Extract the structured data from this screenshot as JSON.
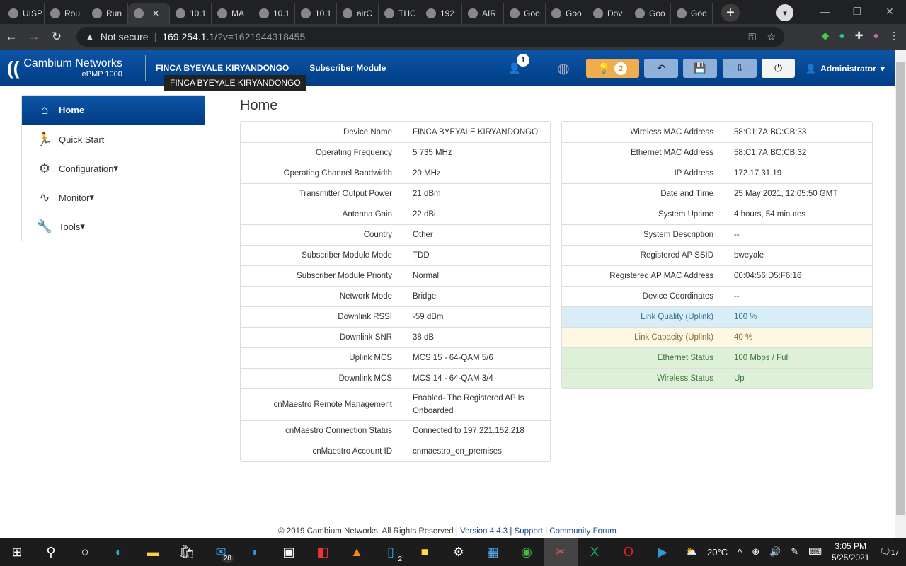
{
  "browser": {
    "tabs": [
      "UISP",
      "Rou",
      "Run",
      "",
      "10.1",
      "MA",
      "10.1",
      "10.1",
      "airC",
      "THC",
      "192",
      "AIR",
      "Goo",
      "Goo",
      "Dov",
      "Goo",
      "Goo"
    ],
    "active_tab": 3,
    "url_host": "169.254.1.1",
    "url_path": "/?v=1621944318455",
    "security": "Not secure"
  },
  "header": {
    "brand": "Cambium Networks",
    "model": "ePMP 1000",
    "device_name": "FINCA BYEYALE KIRYANDONGO",
    "mode": "Subscriber Module",
    "tooltip": "FINCA BYEYALE KIRYANDONGO",
    "users_badge": "1",
    "alerts_badge": "2",
    "user": "Administrator",
    "colors": {
      "header": "#0d55a6",
      "alert_button": "#f0ad4e"
    }
  },
  "sidebar": {
    "items": [
      {
        "label": "Home",
        "icon": "home-icon"
      },
      {
        "label": "Quick Start",
        "icon": "running-icon"
      },
      {
        "label": "Configuration",
        "icon": "gear-icon"
      },
      {
        "label": "Monitor",
        "icon": "pulse-icon"
      },
      {
        "label": "Tools",
        "icon": "wrench-icon"
      }
    ]
  },
  "main": {
    "title": "Home",
    "left": [
      [
        "Device Name",
        "FINCA BYEYALE KIRYANDONGO"
      ],
      [
        "Operating Frequency",
        "5 735 MHz"
      ],
      [
        "Operating Channel Bandwidth",
        "20 MHz"
      ],
      [
        "Transmitter Output Power",
        "21 dBm"
      ],
      [
        "Antenna Gain",
        "22 dBi"
      ],
      [
        "Country",
        "Other"
      ],
      [
        "Subscriber Module Mode",
        "TDD"
      ],
      [
        "Subscriber Module Priority",
        "Normal"
      ],
      [
        "Network Mode",
        "Bridge"
      ],
      [
        "Downlink RSSI",
        "-59 dBm"
      ],
      [
        "Downlink SNR",
        "38 dB"
      ],
      [
        "Uplink MCS",
        "MCS 15 - 64-QAM 5/6"
      ],
      [
        "Downlink MCS",
        "MCS 14 - 64-QAM 3/4"
      ],
      [
        "cnMaestro Remote Management",
        "Enabled- The Registered AP Is Onboarded"
      ],
      [
        "cnMaestro Connection Status",
        "Connected to 197.221.152.218"
      ],
      [
        "cnMaestro Account ID",
        "cnmaestro_on_premises"
      ]
    ],
    "right": [
      [
        "Wireless MAC Address",
        "58:C1:7A:BC:CB:33"
      ],
      [
        "Ethernet MAC Address",
        "58:C1:7A:BC:CB:32"
      ],
      [
        "IP Address",
        "172.17.31.19"
      ],
      [
        "Date and Time",
        "25 May 2021, 12:05:50 GMT"
      ],
      [
        "System Uptime",
        "4 hours, 54 minutes"
      ],
      [
        "System Description",
        "--"
      ],
      [
        "Registered AP SSID",
        "bweyale"
      ],
      [
        "Registered AP MAC Address",
        "00:04:56:D5:F6:16"
      ],
      [
        "Device Coordinates",
        "--"
      ],
      [
        "Link Quality (Uplink)",
        "100 %"
      ],
      [
        "Link Capacity (Uplink)",
        "40 %"
      ],
      [
        "Ethernet Status",
        "100 Mbps / Full"
      ],
      [
        "Wireless Status",
        "Up"
      ]
    ]
  },
  "footer": {
    "copyright": "© 2019 Cambium Networks, All Rights Reserved",
    "version": "Version 4.4.3",
    "support": "Support",
    "forum": "Community Forum"
  },
  "taskbar": {
    "mail_badge": "28",
    "files_badge": "2",
    "weather": "20°C",
    "time": "3:05 PM",
    "date": "5/25/2021",
    "notif": "17"
  }
}
